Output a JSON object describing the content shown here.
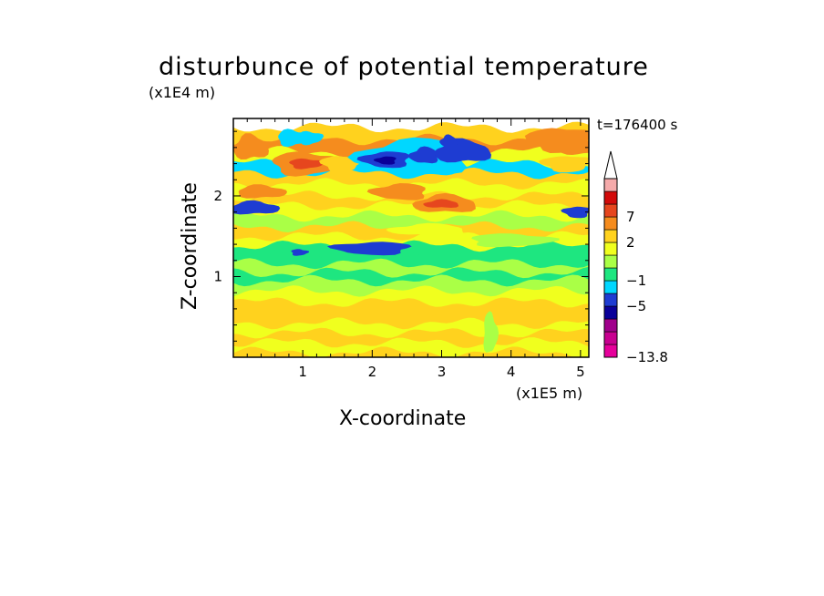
{
  "chart_data": {
    "type": "heatmap",
    "title": "disturbunce of potential temperature",
    "xlabel": "X-coordinate",
    "ylabel": "Z-coordinate",
    "x_unit": "(x1E5 m)",
    "y_unit": "(x1E4 m)",
    "time_label": "t=176400 s",
    "xlim": [
      0,
      5.12
    ],
    "ylim": [
      0,
      2.96
    ],
    "x_ticks": [
      "1",
      "2",
      "3",
      "4",
      "5"
    ],
    "y_ticks": [
      "1",
      "2"
    ],
    "colorbar": {
      "labels": [
        "7",
        "2",
        "−1",
        "−5",
        "−13.8"
      ],
      "min": -13.8,
      "levels": [
        -13.8,
        -11,
        -9,
        -7,
        -5,
        -3,
        -1,
        0,
        1,
        2,
        4,
        7,
        9,
        11
      ],
      "colors": [
        "#e6009b",
        "#c80090",
        "#a0008c",
        "#0a0099",
        "#1e3cd2",
        "#00d7ff",
        "#1ee680",
        "#aaff46",
        "#f0ff1e",
        "#ffd21e",
        "#f58c1e",
        "#e6461e",
        "#d20a0a",
        "#f5aaaa"
      ]
    },
    "bands": [
      {
        "z": 2.85,
        "value": 2
      },
      {
        "z": 2.7,
        "value": 4
      },
      {
        "z": 2.55,
        "value": 1
      },
      {
        "z": 2.4,
        "value": -3
      },
      {
        "z": 2.28,
        "value": 2
      },
      {
        "z": 2.15,
        "value": 1
      },
      {
        "z": 2.0,
        "value": 2
      },
      {
        "z": 1.88,
        "value": 1
      },
      {
        "z": 1.75,
        "value": 0
      },
      {
        "z": 1.62,
        "value": 2
      },
      {
        "z": 1.5,
        "value": 1
      },
      {
        "z": 1.38,
        "value": -1
      },
      {
        "z": 1.28,
        "value": -1
      },
      {
        "z": 1.16,
        "value": 0
      },
      {
        "z": 1.05,
        "value": -1
      },
      {
        "z": 0.95,
        "value": 0
      },
      {
        "z": 0.82,
        "value": 1
      },
      {
        "z": 0.68,
        "value": 2
      },
      {
        "z": 0.55,
        "value": 2
      },
      {
        "z": 0.42,
        "value": 1
      },
      {
        "z": 0.3,
        "value": 2
      },
      {
        "z": 0.18,
        "value": 1
      },
      {
        "z": 0.06,
        "value": 2
      }
    ],
    "features": [
      {
        "x": 0.25,
        "z": 2.6,
        "rx": 0.25,
        "rz": 0.15,
        "value": 4
      },
      {
        "x": 1.05,
        "z": 2.4,
        "rx": 0.5,
        "rz": 0.14,
        "value": 4
      },
      {
        "x": 1.05,
        "z": 2.4,
        "rx": 0.25,
        "rz": 0.06,
        "value": 7
      },
      {
        "x": 0.85,
        "z": 2.72,
        "rx": 0.22,
        "rz": 0.1,
        "value": -3
      },
      {
        "x": 1.1,
        "z": 2.72,
        "rx": 0.18,
        "rz": 0.08,
        "value": -3
      },
      {
        "x": 1.55,
        "z": 2.4,
        "rx": 0.28,
        "rz": 0.1,
        "value": 2
      },
      {
        "x": 2.6,
        "z": 2.48,
        "rx": 0.8,
        "rz": 0.22,
        "value": -3
      },
      {
        "x": 2.2,
        "z": 2.45,
        "rx": 0.35,
        "rz": 0.1,
        "value": -5
      },
      {
        "x": 2.75,
        "z": 2.5,
        "rx": 0.2,
        "rz": 0.1,
        "value": -5
      },
      {
        "x": 3.3,
        "z": 2.55,
        "rx": 0.4,
        "rz": 0.14,
        "value": -5
      },
      {
        "x": 2.2,
        "z": 2.44,
        "rx": 0.15,
        "rz": 0.05,
        "value": -7
      },
      {
        "x": 3.1,
        "z": 2.68,
        "rx": 0.12,
        "rz": 0.07,
        "value": -5
      },
      {
        "x": 3.05,
        "z": 1.9,
        "rx": 0.45,
        "rz": 0.11,
        "value": 4
      },
      {
        "x": 3.0,
        "z": 1.9,
        "rx": 0.25,
        "rz": 0.05,
        "value": 7
      },
      {
        "x": 2.4,
        "z": 2.05,
        "rx": 0.4,
        "rz": 0.1,
        "value": 4
      },
      {
        "x": 0.3,
        "z": 1.85,
        "rx": 0.35,
        "rz": 0.08,
        "value": -5
      },
      {
        "x": 4.95,
        "z": 1.8,
        "rx": 0.2,
        "rz": 0.07,
        "value": -5
      },
      {
        "x": 0.4,
        "z": 2.05,
        "rx": 0.35,
        "rz": 0.08,
        "value": 4
      },
      {
        "x": 4.7,
        "z": 2.7,
        "rx": 0.45,
        "rz": 0.15,
        "value": 4
      },
      {
        "x": 4.8,
        "z": 2.4,
        "rx": 0.35,
        "rz": 0.1,
        "value": 2
      },
      {
        "x": 2.0,
        "z": 1.35,
        "rx": 0.55,
        "rz": 0.08,
        "value": -5
      },
      {
        "x": 0.95,
        "z": 1.3,
        "rx": 0.12,
        "rz": 0.04,
        "value": -5
      },
      {
        "x": 2.8,
        "z": 1.58,
        "rx": 0.55,
        "rz": 0.07,
        "value": 1
      },
      {
        "x": 4.0,
        "z": 1.45,
        "rx": 0.6,
        "rz": 0.08,
        "value": 0
      },
      {
        "x": 3.7,
        "z": 0.3,
        "rx": 0.1,
        "rz": 0.25,
        "value": 0
      }
    ]
  }
}
